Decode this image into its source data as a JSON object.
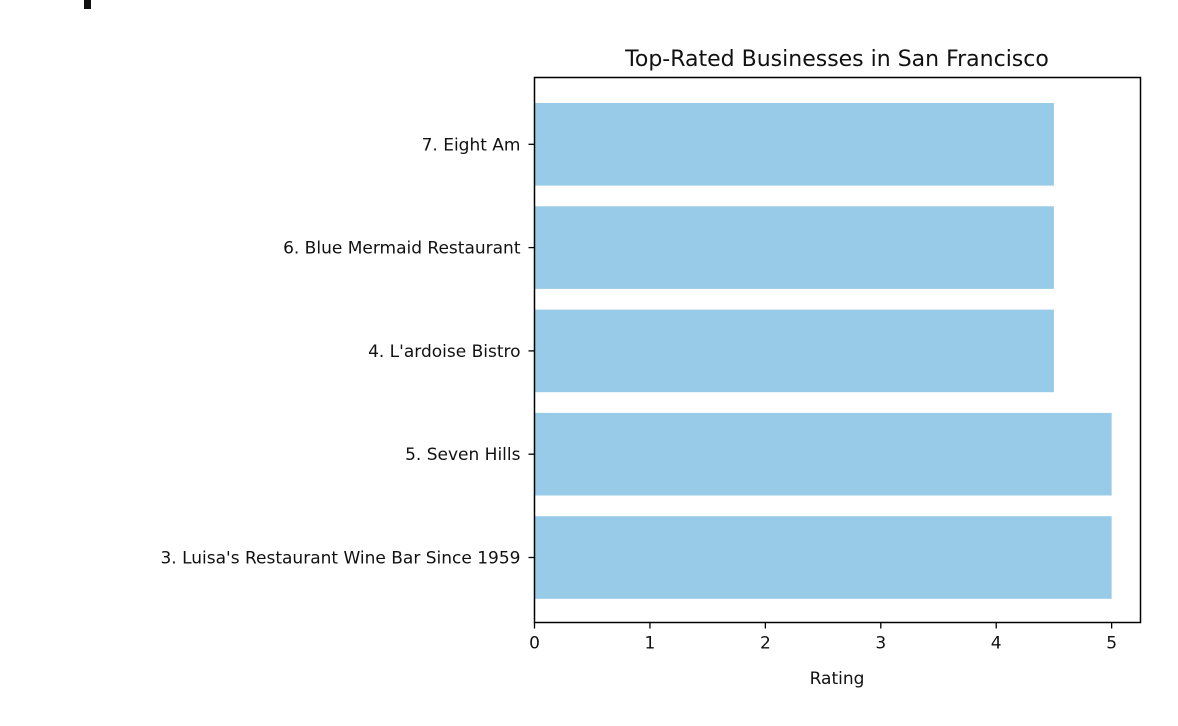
{
  "chart_data": {
    "type": "bar",
    "orientation": "horizontal",
    "title": "Top-Rated Businesses in San Francisco",
    "xlabel": "Rating",
    "ylabel": "",
    "categories": [
      "3. Luisa's Restaurant Wine Bar Since 1959",
      "5. Seven Hills",
      "4. L'ardoise Bistro",
      "6. Blue Mermaid Restaurant",
      "7. Eight Am"
    ],
    "values": [
      5,
      5,
      4.5,
      4.5,
      4.5
    ],
    "xlim": [
      0,
      5.25
    ],
    "xticks": [
      0,
      1,
      2,
      3,
      4,
      5
    ],
    "grid": false,
    "bar_color": "#97cbe7"
  }
}
